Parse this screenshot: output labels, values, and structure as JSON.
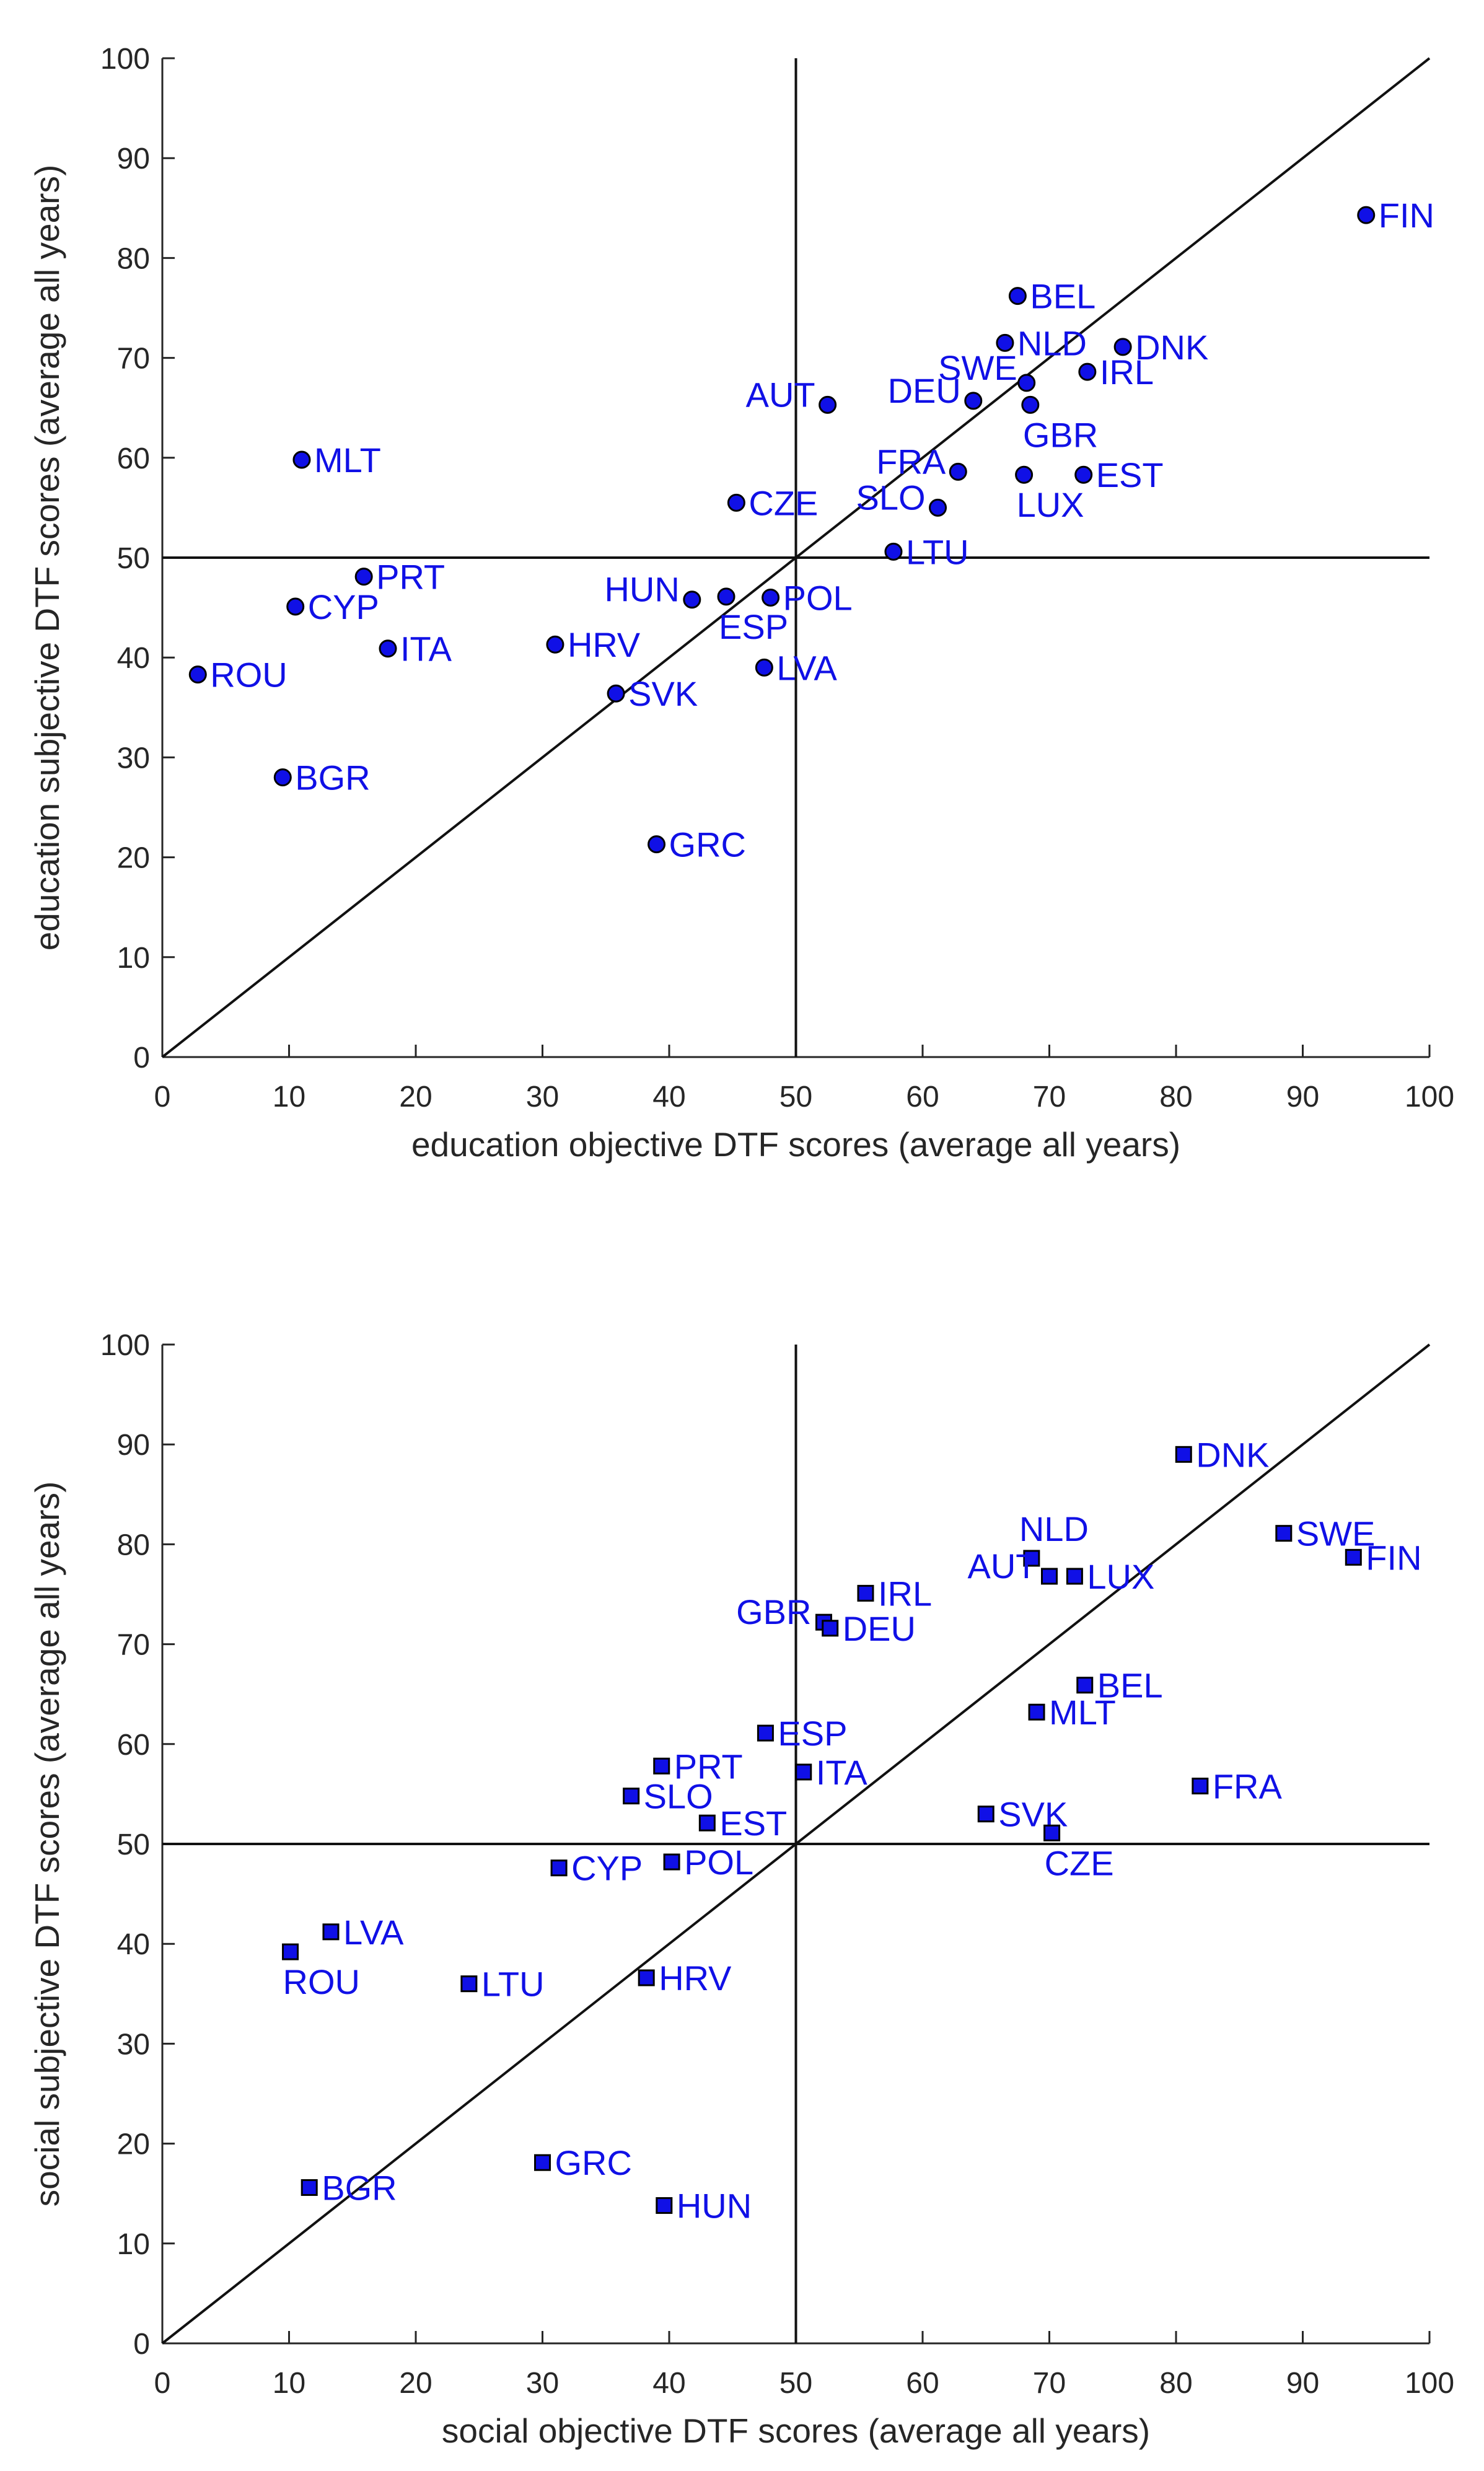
{
  "chart_data": [
    {
      "type": "scatter",
      "title": "",
      "xlabel": "education objective DTF scores (average all years)",
      "ylabel": "education subjective DTF scores (average all years)",
      "xlim": [
        0,
        100
      ],
      "ylim": [
        0,
        100
      ],
      "xticks": [
        0,
        10,
        20,
        30,
        40,
        50,
        60,
        70,
        80,
        90,
        100
      ],
      "yticks": [
        0,
        10,
        20,
        30,
        40,
        50,
        60,
        70,
        80,
        90,
        100
      ],
      "reference_lines": {
        "vertical_x": 50,
        "horizontal_y": 50,
        "diagonal": "y = x"
      },
      "marker": "circle",
      "color": "#1010e6",
      "points": [
        {
          "label": "FIN",
          "x": 95,
          "y": 84.3,
          "pos": "right"
        },
        {
          "label": "BEL",
          "x": 67.5,
          "y": 76.2,
          "pos": "right"
        },
        {
          "label": "NLD",
          "x": 66.5,
          "y": 71.5,
          "pos": "right"
        },
        {
          "label": "DNK",
          "x": 75.8,
          "y": 71.1,
          "pos": "right"
        },
        {
          "label": "IRL",
          "x": 73,
          "y": 68.6,
          "pos": "right"
        },
        {
          "label": "SWE",
          "x": 68.2,
          "y": 67.5,
          "pos": "upleft"
        },
        {
          "label": "DEU",
          "x": 64,
          "y": 65.7,
          "pos": "left"
        },
        {
          "label": "AUT",
          "x": 52.5,
          "y": 65.3,
          "pos": "left"
        },
        {
          "label": "GBR",
          "x": 68.5,
          "y": 65.3,
          "pos": "below"
        },
        {
          "label": "MLT",
          "x": 11,
          "y": 59.8,
          "pos": "right"
        },
        {
          "label": "FRA",
          "x": 62.8,
          "y": 58.6,
          "pos": "left"
        },
        {
          "label": "LUX",
          "x": 68,
          "y": 58.3,
          "pos": "below"
        },
        {
          "label": "EST",
          "x": 72.7,
          "y": 58.3,
          "pos": "right"
        },
        {
          "label": "SLO",
          "x": 61.2,
          "y": 55,
          "pos": "left"
        },
        {
          "label": "CZE",
          "x": 45.3,
          "y": 55.5,
          "pos": "right"
        },
        {
          "label": "LTU",
          "x": 57.7,
          "y": 50.6,
          "pos": "right"
        },
        {
          "label": "PRT",
          "x": 15.9,
          "y": 48.1,
          "pos": "right"
        },
        {
          "label": "HUN",
          "x": 41.8,
          "y": 45.8,
          "pos": "left"
        },
        {
          "label": "ESP",
          "x": 44.5,
          "y": 46.1,
          "pos": "below"
        },
        {
          "label": "POL",
          "x": 48,
          "y": 46,
          "pos": "right"
        },
        {
          "label": "CYP",
          "x": 10.5,
          "y": 45.1,
          "pos": "right"
        },
        {
          "label": "HRV",
          "x": 31,
          "y": 41.3,
          "pos": "right"
        },
        {
          "label": "ITA",
          "x": 17.8,
          "y": 40.9,
          "pos": "right"
        },
        {
          "label": "LVA",
          "x": 47.5,
          "y": 39,
          "pos": "right"
        },
        {
          "label": "ROU",
          "x": 2.8,
          "y": 38.3,
          "pos": "right"
        },
        {
          "label": "SVK",
          "x": 35.8,
          "y": 36.4,
          "pos": "right"
        },
        {
          "label": "BGR",
          "x": 9.5,
          "y": 28,
          "pos": "right"
        },
        {
          "label": "GRC",
          "x": 39,
          "y": 21.3,
          "pos": "right"
        }
      ]
    },
    {
      "type": "scatter",
      "title": "",
      "xlabel": "social objective DTF scores (average all years)",
      "ylabel": "social subjective DTF scores (average all years)",
      "xlim": [
        0,
        100
      ],
      "ylim": [
        0,
        100
      ],
      "xticks": [
        0,
        10,
        20,
        30,
        40,
        50,
        60,
        70,
        80,
        90,
        100
      ],
      "yticks": [
        0,
        10,
        20,
        30,
        40,
        50,
        60,
        70,
        80,
        90,
        100
      ],
      "reference_lines": {
        "vertical_x": 50,
        "horizontal_y": 50,
        "diagonal": "y = x"
      },
      "marker": "square",
      "color": "#1010e6",
      "points": [
        {
          "label": "DNK",
          "x": 80.6,
          "y": 89,
          "pos": "right"
        },
        {
          "label": "SWE",
          "x": 88.5,
          "y": 81.1,
          "pos": "right"
        },
        {
          "label": "FIN",
          "x": 94,
          "y": 78.7,
          "pos": "right"
        },
        {
          "label": "NLD",
          "x": 68.6,
          "y": 78.6,
          "pos": "above"
        },
        {
          "label": "AUT",
          "x": 70,
          "y": 76.8,
          "pos": "left"
        },
        {
          "label": "LUX",
          "x": 72,
          "y": 76.8,
          "pos": "right"
        },
        {
          "label": "IRL",
          "x": 55.5,
          "y": 75.1,
          "pos": "right"
        },
        {
          "label": "GBR",
          "x": 52.2,
          "y": 72.2,
          "pos": "left"
        },
        {
          "label": "DEU",
          "x": 52.7,
          "y": 71.6,
          "pos": "right"
        },
        {
          "label": "BEL",
          "x": 72.8,
          "y": 65.9,
          "pos": "right"
        },
        {
          "label": "MLT",
          "x": 69,
          "y": 63.2,
          "pos": "right"
        },
        {
          "label": "ESP",
          "x": 47.6,
          "y": 61.1,
          "pos": "right"
        },
        {
          "label": "PRT",
          "x": 39.4,
          "y": 57.8,
          "pos": "right"
        },
        {
          "label": "ITA",
          "x": 50.6,
          "y": 57.2,
          "pos": "right"
        },
        {
          "label": "FRA",
          "x": 81.9,
          "y": 55.8,
          "pos": "right"
        },
        {
          "label": "SLO",
          "x": 37,
          "y": 54.8,
          "pos": "right"
        },
        {
          "label": "SVK",
          "x": 65,
          "y": 53,
          "pos": "right"
        },
        {
          "label": "EST",
          "x": 43,
          "y": 52.1,
          "pos": "right"
        },
        {
          "label": "CZE",
          "x": 70.2,
          "y": 51.1,
          "pos": "below"
        },
        {
          "label": "POL",
          "x": 40.2,
          "y": 48.2,
          "pos": "right"
        },
        {
          "label": "CYP",
          "x": 31.3,
          "y": 47.6,
          "pos": "right"
        },
        {
          "label": "LVA",
          "x": 13.3,
          "y": 41.2,
          "pos": "right"
        },
        {
          "label": "ROU",
          "x": 10.1,
          "y": 39.2,
          "pos": "below"
        },
        {
          "label": "HRV",
          "x": 38.2,
          "y": 36.6,
          "pos": "right"
        },
        {
          "label": "LTU",
          "x": 24.2,
          "y": 36,
          "pos": "right"
        },
        {
          "label": "GRC",
          "x": 30,
          "y": 18.1,
          "pos": "right"
        },
        {
          "label": "BGR",
          "x": 11.6,
          "y": 15.6,
          "pos": "right"
        },
        {
          "label": "HUN",
          "x": 39.6,
          "y": 13.8,
          "pos": "right"
        }
      ]
    }
  ]
}
